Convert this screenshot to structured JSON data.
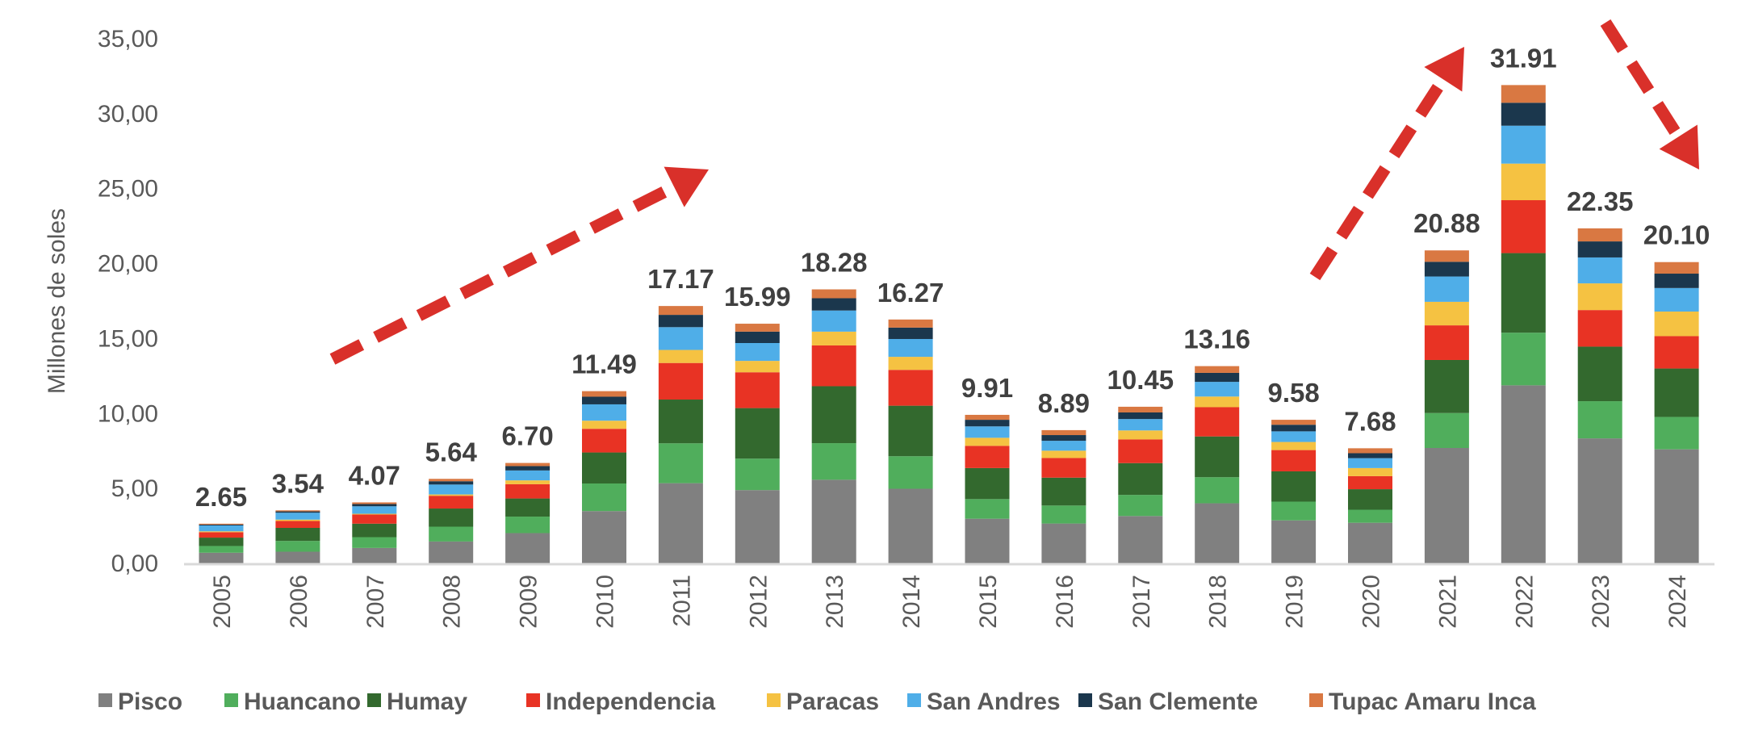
{
  "chart_data": {
    "type": "bar",
    "stacked": true,
    "title": "",
    "xlabel": "",
    "ylabel": "Millones de soles",
    "ylim": [
      0,
      35
    ],
    "yticks": [
      "0,00",
      "5,00",
      "10,00",
      "15,00",
      "20,00",
      "25,00",
      "30,00",
      "35,00"
    ],
    "ytick_values": [
      0,
      5,
      10,
      15,
      20,
      25,
      30,
      35
    ],
    "grid": false,
    "legend_position": "bottom",
    "categories": [
      "2005",
      "2006",
      "2007",
      "2008",
      "2009",
      "2010",
      "2011",
      "2012",
      "2013",
      "2014",
      "2015",
      "2016",
      "2017",
      "2018",
      "2019",
      "2020",
      "2021",
      "2022",
      "2023",
      "2024"
    ],
    "totals": [
      "2.65",
      "3.54",
      "4.07",
      "5.64",
      "6.70",
      "11.49",
      "17.17",
      "15.99",
      "18.28",
      "16.27",
      "9.91",
      "8.89",
      "10.45",
      "13.16",
      "9.58",
      "7.68",
      "20.88",
      "31.91",
      "22.35",
      "20.10"
    ],
    "series": [
      {
        "name": "Pisco",
        "color": "#808080",
        "values": [
          0.71,
          0.78,
          1.03,
          1.46,
          2.02,
          3.49,
          5.35,
          4.89,
          5.58,
          4.98,
          2.98,
          2.66,
          3.16,
          4.01,
          2.87,
          2.71,
          7.7,
          11.88,
          8.34,
          7.61
        ]
      },
      {
        "name": "Huancano",
        "color": "#50ae5c",
        "values": [
          0.45,
          0.72,
          0.72,
          0.99,
          1.1,
          1.84,
          2.66,
          2.1,
          2.44,
          2.17,
          1.31,
          1.2,
          1.41,
          1.74,
          1.25,
          0.87,
          2.33,
          3.51,
          2.48,
          2.16
        ]
      },
      {
        "name": "Humay",
        "color": "#33692e",
        "values": [
          0.56,
          0.87,
          0.9,
          1.21,
          1.21,
          2.07,
          2.92,
          3.37,
          3.8,
          3.37,
          2.07,
          1.86,
          2.12,
          2.72,
          2.02,
          1.37,
          3.54,
          5.31,
          3.64,
          3.23
        ]
      },
      {
        "name": "Independencia",
        "color": "#e83324",
        "values": [
          0.36,
          0.46,
          0.61,
          0.85,
          0.95,
          1.58,
          2.44,
          2.39,
          2.72,
          2.39,
          1.48,
          1.31,
          1.58,
          1.95,
          1.42,
          0.87,
          2.31,
          3.53,
          2.44,
          2.16
        ]
      },
      {
        "name": "Paracas",
        "color": "#f5c242",
        "values": [
          0.06,
          0.09,
          0.05,
          0.09,
          0.26,
          0.54,
          0.87,
          0.76,
          0.92,
          0.87,
          0.54,
          0.49,
          0.6,
          0.71,
          0.54,
          0.54,
          1.57,
          2.44,
          1.78,
          1.64
        ]
      },
      {
        "name": "San Andres",
        "color": "#4faee8",
        "values": [
          0.39,
          0.46,
          0.5,
          0.66,
          0.66,
          1.09,
          1.52,
          1.19,
          1.41,
          1.19,
          0.76,
          0.66,
          0.76,
          0.98,
          0.71,
          0.66,
          1.69,
          2.53,
          1.73,
          1.57
        ]
      },
      {
        "name": "San Clemente",
        "color": "#1b374d",
        "values": [
          0.06,
          0.09,
          0.15,
          0.22,
          0.29,
          0.51,
          0.82,
          0.76,
          0.82,
          0.76,
          0.44,
          0.38,
          0.44,
          0.6,
          0.44,
          0.33,
          0.98,
          1.53,
          1.07,
          0.96
        ]
      },
      {
        "name": "Tupac Amaru Inca",
        "color": "#d97842",
        "values": [
          0.06,
          0.07,
          0.11,
          0.16,
          0.21,
          0.37,
          0.59,
          0.53,
          0.59,
          0.54,
          0.33,
          0.33,
          0.38,
          0.45,
          0.33,
          0.33,
          0.76,
          1.18,
          0.87,
          0.77
        ]
      }
    ],
    "annotations": [
      {
        "type": "trend-arrow",
        "direction": "up",
        "from_year": "2006",
        "to_year": "2011"
      },
      {
        "type": "trend-arrow",
        "direction": "up",
        "from_year": "2019",
        "to_year": "2021"
      },
      {
        "type": "trend-arrow",
        "direction": "down",
        "from_year": "2022",
        "to_year": "2024"
      }
    ],
    "arrow_color": "#d9302a"
  }
}
